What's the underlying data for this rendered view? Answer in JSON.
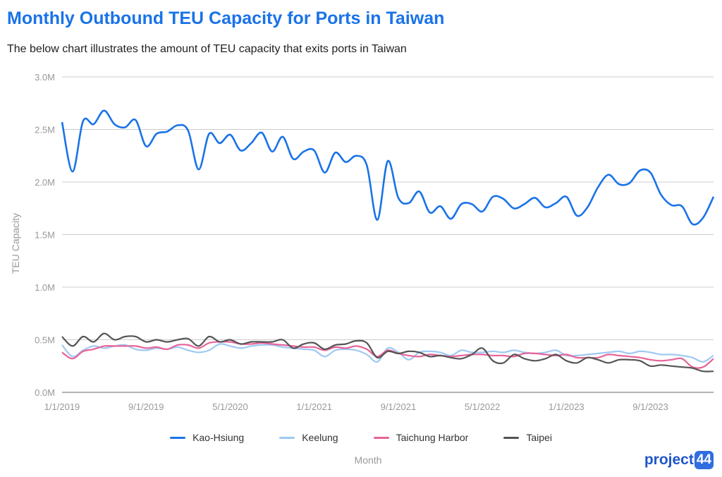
{
  "header": {
    "title": "Monthly Outbound TEU Capacity for Ports in Taiwan",
    "subtitle": "The below chart illustrates the amount of TEU capacity that exits ports in Taiwan"
  },
  "logo": {
    "text": "project",
    "badge": "44"
  },
  "colors": {
    "title": "#1a73e8",
    "grid": "#cccccc",
    "axis_text": "#999999"
  },
  "chart_data": {
    "type": "line",
    "title": "Monthly Outbound TEU Capacity for Ports in Taiwan",
    "subtitle": "The below chart illustrates the amount of TEU capacity that exits ports in Taiwan",
    "xlabel": "Month",
    "ylabel": "TEU Capacity",
    "ylim": [
      0,
      3000000
    ],
    "y_ticks": [
      "0.0M",
      "0.5M",
      "1.0M",
      "1.5M",
      "2.0M",
      "2.5M",
      "3.0M"
    ],
    "x_ticks": [
      "1/1/2019",
      "9/1/2019",
      "5/1/2020",
      "1/1/2021",
      "9/1/2021",
      "5/1/2022",
      "1/1/2023",
      "9/1/2023"
    ],
    "x_start": "1/1/2019",
    "x_end": "3/1/2024",
    "grid": true,
    "legend_position": "bottom",
    "series": [
      {
        "name": "Kao-Hsiung",
        "color": "#1a73e8",
        "values": [
          2570000,
          2100000,
          2580000,
          2550000,
          2680000,
          2550000,
          2520000,
          2590000,
          2340000,
          2460000,
          2480000,
          2540000,
          2490000,
          2120000,
          2460000,
          2370000,
          2450000,
          2300000,
          2370000,
          2470000,
          2290000,
          2430000,
          2220000,
          2290000,
          2300000,
          2090000,
          2280000,
          2190000,
          2250000,
          2160000,
          1640000,
          2200000,
          1850000,
          1800000,
          1910000,
          1710000,
          1770000,
          1650000,
          1790000,
          1790000,
          1720000,
          1860000,
          1840000,
          1750000,
          1790000,
          1850000,
          1760000,
          1800000,
          1860000,
          1680000,
          1760000,
          1950000,
          2070000,
          1980000,
          1990000,
          2110000,
          2090000,
          1880000,
          1780000,
          1770000,
          1600000,
          1660000,
          1860000
        ]
      },
      {
        "name": "Keelung",
        "color": "#9fc9f3",
        "values": [
          450000,
          340000,
          400000,
          440000,
          420000,
          440000,
          450000,
          410000,
          400000,
          420000,
          410000,
          430000,
          400000,
          380000,
          400000,
          460000,
          440000,
          420000,
          440000,
          450000,
          450000,
          430000,
          420000,
          410000,
          400000,
          340000,
          400000,
          410000,
          400000,
          360000,
          290000,
          420000,
          380000,
          310000,
          380000,
          390000,
          380000,
          350000,
          400000,
          380000,
          380000,
          390000,
          380000,
          400000,
          380000,
          370000,
          380000,
          400000,
          350000,
          350000,
          360000,
          370000,
          380000,
          390000,
          370000,
          390000,
          380000,
          360000,
          360000,
          350000,
          330000,
          290000,
          350000
        ]
      },
      {
        "name": "Taichung Harbor",
        "color": "#e8639a",
        "values": [
          380000,
          320000,
          390000,
          410000,
          440000,
          440000,
          440000,
          440000,
          420000,
          430000,
          410000,
          450000,
          450000,
          420000,
          470000,
          480000,
          480000,
          460000,
          460000,
          470000,
          460000,
          450000,
          440000,
          430000,
          430000,
          400000,
          430000,
          420000,
          440000,
          410000,
          340000,
          400000,
          370000,
          350000,
          340000,
          360000,
          350000,
          340000,
          350000,
          360000,
          360000,
          350000,
          350000,
          340000,
          370000,
          370000,
          360000,
          350000,
          360000,
          330000,
          330000,
          330000,
          360000,
          350000,
          340000,
          330000,
          310000,
          300000,
          310000,
          320000,
          240000,
          240000,
          320000
        ]
      },
      {
        "name": "Taipei",
        "color": "#555555",
        "values": [
          530000,
          440000,
          530000,
          480000,
          560000,
          500000,
          530000,
          530000,
          480000,
          500000,
          480000,
          500000,
          510000,
          440000,
          530000,
          480000,
          500000,
          460000,
          480000,
          480000,
          480000,
          500000,
          420000,
          460000,
          470000,
          410000,
          450000,
          460000,
          490000,
          470000,
          330000,
          390000,
          370000,
          390000,
          380000,
          340000,
          350000,
          330000,
          320000,
          360000,
          420000,
          300000,
          280000,
          360000,
          320000,
          300000,
          320000,
          360000,
          300000,
          280000,
          330000,
          310000,
          280000,
          310000,
          310000,
          300000,
          250000,
          260000,
          250000,
          240000,
          230000,
          200000,
          200000
        ]
      }
    ]
  }
}
